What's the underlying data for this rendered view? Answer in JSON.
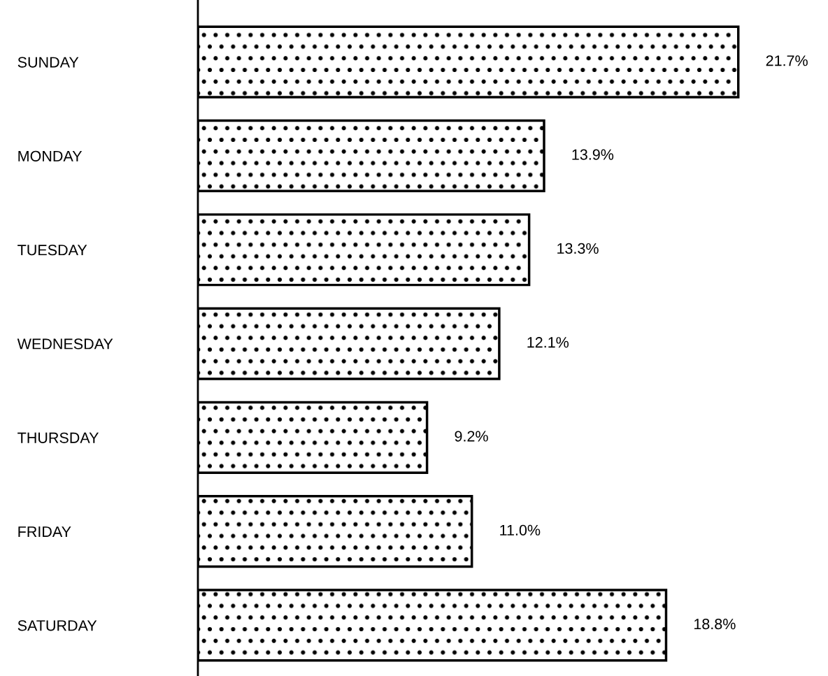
{
  "chart_data": {
    "type": "bar",
    "orientation": "horizontal",
    "categories": [
      "SUNDAY",
      "MONDAY",
      "TUESDAY",
      "WEDNESDAY",
      "THURSDAY",
      "FRIDAY",
      "SATURDAY"
    ],
    "values": [
      21.7,
      13.9,
      13.3,
      12.1,
      9.2,
      11.0,
      18.8
    ],
    "value_labels": [
      "21.7%",
      "13.9%",
      "13.3%",
      "12.1%",
      "9.2%",
      "11.0%",
      "18.8%"
    ],
    "color": "#000000",
    "tick_labels": "y",
    "grid": false,
    "legend": false
  }
}
